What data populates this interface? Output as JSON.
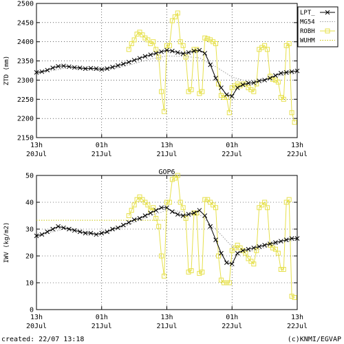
{
  "footer": {
    "created": "created: 22/07 13:18",
    "credit": "(c)KNMI/EGVAP"
  },
  "colors": {
    "LPT_": "#000000",
    "MG54": "#9a9a9a",
    "ROBH": "#e6e04a",
    "WUHM": "#c9c300"
  },
  "chart_data": [
    {
      "type": "line",
      "ylabel": "ZTD (mm)",
      "ylim": [
        2150,
        2500
      ],
      "yticks": [
        2150,
        2200,
        2250,
        2300,
        2350,
        2400,
        2450,
        2500
      ],
      "xlim": [
        0,
        48
      ],
      "xticks": [
        {
          "x": 0,
          "top": "13h",
          "bottom": "20Jul"
        },
        {
          "x": 12,
          "top": "01h",
          "bottom": "21Jul"
        },
        {
          "x": 24,
          "top": "13h",
          "bottom": "21Jul"
        },
        {
          "x": 36,
          "top": "01h",
          "bottom": "22Jul"
        },
        {
          "x": 48,
          "top": "13h",
          "bottom": "22Jul"
        }
      ],
      "grid": true,
      "legend": "top-right",
      "series": [
        {
          "name": "LPT_",
          "marker": "x",
          "style": "solid",
          "x": [
            0,
            1,
            2,
            3,
            4,
            5,
            6,
            7,
            8,
            9,
            10,
            11,
            12,
            13,
            14,
            15,
            16,
            17,
            18,
            19,
            20,
            21,
            22,
            23,
            24,
            25,
            26,
            27,
            28,
            29,
            30,
            31,
            32,
            33,
            34,
            35,
            36,
            37,
            38,
            39,
            40,
            41,
            42,
            43,
            44,
            45,
            46,
            47,
            48
          ],
          "y": [
            2320,
            2322,
            2326,
            2332,
            2336,
            2337,
            2335,
            2333,
            2332,
            2330,
            2331,
            2330,
            2328,
            2330,
            2334,
            2338,
            2342,
            2347,
            2352,
            2357,
            2362,
            2366,
            2370,
            2374,
            2378,
            2376,
            2372,
            2369,
            2372,
            2376,
            2378,
            2370,
            2340,
            2305,
            2280,
            2262,
            2258,
            2280,
            2288,
            2292,
            2293,
            2298,
            2300,
            2305,
            2312,
            2318,
            2320,
            2322,
            2324
          ]
        },
        {
          "name": "MG54",
          "marker": "none",
          "style": "dotted",
          "x": [
            0,
            3,
            6,
            9,
            12,
            15,
            18,
            21,
            24,
            27,
            30,
            33,
            36,
            39,
            42,
            45,
            48
          ],
          "y": [
            2318,
            2325,
            2333,
            2328,
            2325,
            2332,
            2343,
            2355,
            2363,
            2362,
            2358,
            2335,
            2308,
            2296,
            2302,
            2312,
            2318
          ]
        },
        {
          "name": "ROBH",
          "marker": "square",
          "style": "solid",
          "x": [
            17,
            17.5,
            18,
            18.5,
            19,
            19.5,
            20,
            20.5,
            21,
            21.5,
            22,
            22.5,
            23,
            23.5,
            24,
            24.5,
            25,
            25.5,
            26,
            26.5,
            27,
            27.5,
            28,
            28.5,
            29,
            29.5,
            30,
            30.5,
            31,
            31.5,
            32,
            32.5,
            33,
            33.5,
            34,
            34.5,
            35,
            35.5,
            36,
            36.5,
            37,
            37.5,
            38,
            38.5,
            39,
            39.5,
            40,
            40.5,
            41,
            41.5,
            42,
            42.5,
            43,
            43.5,
            44,
            44.5,
            45,
            45.5,
            46,
            46.5,
            47,
            47.5
          ],
          "y": [
            2380,
            2395,
            2405,
            2420,
            2425,
            2418,
            2410,
            2405,
            2395,
            2400,
            2380,
            2360,
            2270,
            2218,
            2390,
            2390,
            2455,
            2465,
            2475,
            2400,
            2390,
            2360,
            2270,
            2275,
            2380,
            2380,
            2265,
            2270,
            2410,
            2408,
            2405,
            2400,
            2395,
            2290,
            2260,
            2255,
            2255,
            2215,
            2280,
            2285,
            2290,
            2285,
            2290,
            2290,
            2280,
            2275,
            2270,
            2290,
            2380,
            2385,
            2390,
            2380,
            2310,
            2302,
            2300,
            2295,
            2255,
            2250,
            2390,
            2395,
            2215,
            2190
          ]
        },
        {
          "name": "WUHM",
          "marker": "none",
          "style": "dotted",
          "x": [],
          "y": []
        }
      ]
    },
    {
      "type": "line",
      "title": "GOP6",
      "ylabel": "IWV (kg/m2)",
      "ylim": [
        0,
        50
      ],
      "yticks": [
        0,
        10,
        20,
        30,
        40,
        50
      ],
      "xlim": [
        0,
        48
      ],
      "xticks": [
        {
          "x": 0,
          "top": "13h",
          "bottom": "20Jul"
        },
        {
          "x": 12,
          "top": "01h",
          "bottom": "21Jul"
        },
        {
          "x": 24,
          "top": "13h",
          "bottom": "21Jul"
        },
        {
          "x": 36,
          "top": "01h",
          "bottom": "22Jul"
        },
        {
          "x": 48,
          "top": "13h",
          "bottom": "22Jul"
        }
      ],
      "grid": true,
      "legend": "none",
      "series": [
        {
          "name": "LPT_",
          "marker": "x",
          "style": "solid",
          "x": [
            0,
            1,
            2,
            3,
            4,
            5,
            6,
            7,
            8,
            9,
            10,
            11,
            12,
            13,
            14,
            15,
            16,
            17,
            18,
            19,
            20,
            21,
            22,
            23,
            24,
            25,
            26,
            27,
            28,
            29,
            30,
            31,
            32,
            33,
            34,
            35,
            36,
            37,
            38,
            39,
            40,
            41,
            42,
            43,
            44,
            45,
            46,
            47,
            48
          ],
          "y": [
            27.5,
            28,
            29,
            30,
            31,
            30.5,
            30,
            29.5,
            29,
            28.5,
            28.5,
            28,
            28.5,
            29,
            30,
            30.5,
            31.5,
            32.5,
            33.5,
            34,
            35,
            36,
            37,
            38,
            38,
            36.5,
            35.5,
            35,
            35.5,
            36,
            37,
            35,
            31,
            26,
            21,
            17.5,
            17,
            21,
            22,
            22.5,
            23,
            23.5,
            24,
            24.5,
            25,
            25.5,
            26,
            26.5,
            26.5
          ]
        },
        {
          "name": "MG54",
          "marker": "none",
          "style": "dotted",
          "x": [
            0,
            3,
            6,
            9,
            12,
            15,
            18,
            21,
            24,
            27,
            30,
            33,
            36,
            39,
            42,
            45,
            48
          ],
          "y": [
            27,
            29,
            30.5,
            29,
            28,
            30,
            32.5,
            35,
            37,
            36.5,
            35.5,
            30,
            23.5,
            21.5,
            23,
            25,
            26
          ]
        },
        {
          "name": "ROBH",
          "marker": "square",
          "style": "solid",
          "x": [
            17,
            17.5,
            18,
            18.5,
            19,
            19.5,
            20,
            20.5,
            21,
            21.5,
            22,
            22.5,
            23,
            23.5,
            24,
            24.5,
            25,
            25.5,
            26,
            26.5,
            27,
            27.5,
            28,
            28.5,
            29,
            29.5,
            30,
            30.5,
            31,
            31.5,
            32,
            32.5,
            33,
            33.5,
            34,
            34.5,
            35,
            35.5,
            36,
            36.5,
            37,
            37.5,
            38,
            38.5,
            39,
            39.5,
            40,
            40.5,
            41,
            41.5,
            42,
            42.5,
            43,
            43.5,
            44,
            44.5,
            45,
            45.5,
            46,
            46.5,
            47,
            47.5
          ],
          "y": [
            35,
            37,
            39,
            41,
            42,
            41,
            40,
            39,
            37,
            38,
            34,
            31,
            20,
            12.5,
            40,
            40,
            48.5,
            49,
            50,
            40,
            38,
            34,
            14,
            14.5,
            36,
            36,
            13.5,
            14,
            41,
            41,
            40,
            39,
            38,
            20,
            11,
            10,
            10,
            10,
            22,
            23,
            24,
            23,
            22,
            21,
            19,
            18,
            17,
            22,
            38,
            39,
            40,
            38,
            24,
            23,
            22.5,
            21,
            15,
            15,
            40,
            41,
            5,
            4.5
          ]
        },
        {
          "name": "WUHM",
          "marker": "none",
          "style": "dotted",
          "x": [
            0,
            6,
            12,
            18,
            24
          ],
          "y": [
            33.3,
            33.3,
            33.3,
            33.3,
            33.3
          ]
        }
      ]
    }
  ]
}
